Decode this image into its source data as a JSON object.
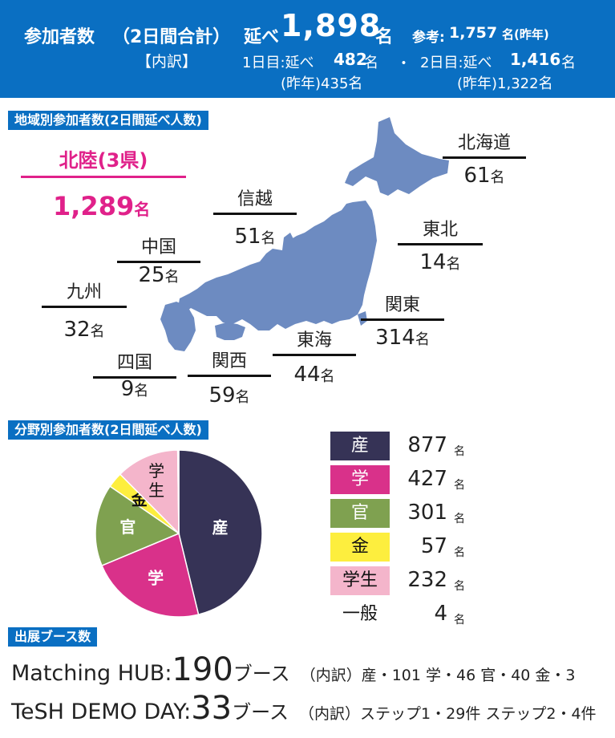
{
  "header": {
    "label": "参加者数",
    "period": "（2日間合計）",
    "total_prefix": "延べ",
    "total": "1,898",
    "unit": "名",
    "ref_label": "参考:",
    "ref_value": "1,757",
    "ref_unit": "名(昨年)",
    "breakdown_label": "【内訳】",
    "day1_label": "1日目:延べ",
    "day1_value": "482",
    "day1_unit": "名",
    "separator": "・",
    "day2_label": "2日目:延べ",
    "day2_value": "1,416",
    "day2_unit": "名",
    "day1_prev": "(昨年)435名",
    "day2_prev": "(昨年)1,322名"
  },
  "region_section": {
    "title": "地域別参加者数(2日間延べ人数)",
    "highlight": {
      "name": "北陸(3県)",
      "count": "1,289",
      "unit": "名"
    },
    "regions": [
      {
        "name": "北海道",
        "count": "61",
        "unit": "名"
      },
      {
        "name": "東北",
        "count": "14",
        "unit": "名"
      },
      {
        "name": "関東",
        "count": "314",
        "unit": "名"
      },
      {
        "name": "信越",
        "count": "51",
        "unit": "名"
      },
      {
        "name": "東海",
        "count": "44",
        "unit": "名"
      },
      {
        "name": "関西",
        "count": "59",
        "unit": "名"
      },
      {
        "name": "中国",
        "count": "25",
        "unit": "名"
      },
      {
        "name": "四国",
        "count": "9",
        "unit": "名"
      },
      {
        "name": "九州",
        "count": "32",
        "unit": "名"
      }
    ],
    "map_color": "#6d8bc1"
  },
  "field_section": {
    "title": "分野別参加者数(2日間延べ人数)",
    "legend": [
      {
        "label": "産",
        "value": "877",
        "unit": "名",
        "color": "#363356",
        "text_color": "#ffffff"
      },
      {
        "label": "学",
        "value": "427",
        "unit": "名",
        "color": "#d9318a",
        "text_color": "#ffffff"
      },
      {
        "label": "官",
        "value": "301",
        "unit": "名",
        "color": "#7fa150",
        "text_color": "#ffffff"
      },
      {
        "label": "金",
        "value": "57",
        "unit": "名",
        "color": "#fdee3e",
        "text_color": "#111111"
      },
      {
        "label": "学生",
        "value": "232",
        "unit": "名",
        "color": "#f4b5cb",
        "text_color": "#111111"
      },
      {
        "label": "一般",
        "value": "4",
        "unit": "名",
        "color": "#ffffff",
        "text_color": "#111111"
      }
    ]
  },
  "chart_data": {
    "type": "pie",
    "categories": [
      "産",
      "学",
      "官",
      "金",
      "学生",
      "一般"
    ],
    "values": [
      877,
      427,
      301,
      57,
      232,
      4
    ],
    "slice_labels": [
      "産",
      "学",
      "官",
      "金",
      "学生",
      ""
    ],
    "colors": [
      "#363356",
      "#d9318a",
      "#7fa150",
      "#fdee3e",
      "#f4b5cb",
      "#ffffff"
    ],
    "legend_position": "right"
  },
  "booth_section": {
    "title": "出展ブース数",
    "rows": [
      {
        "name": "Matching HUB",
        "colon": ":",
        "count": "190",
        "unit": "ブース",
        "detail": "（内訳）産・101 学・46 官・40 金・3"
      },
      {
        "name": "TeSH DEMO DAY",
        "colon": ":",
        "count": "33",
        "unit": "ブース",
        "detail": "（内訳）ステップ1・29件 ステップ2・4件"
      }
    ]
  }
}
